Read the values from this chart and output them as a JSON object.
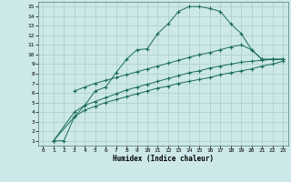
{
  "xlabel": "Humidex (Indice chaleur)",
  "bg_color": "#cce8e8",
  "line_color": "#1a6b5a",
  "grid_color": "#aacccc",
  "c1_x": [
    1,
    2,
    3,
    4,
    5,
    6,
    7,
    8,
    9,
    10,
    11,
    12,
    13,
    14,
    15,
    16,
    17,
    18,
    19,
    20,
    21,
    22,
    23
  ],
  "c1_y": [
    1.0,
    1.0,
    3.5,
    4.7,
    6.2,
    6.6,
    8.1,
    9.5,
    10.5,
    10.6,
    12.2,
    13.2,
    14.5,
    15.0,
    15.0,
    14.8,
    14.5,
    13.2,
    12.2,
    10.5,
    9.5,
    9.5,
    9.5
  ],
  "c2_x": [
    3,
    4,
    5,
    6,
    7,
    8,
    9,
    10,
    11,
    12,
    13,
    14,
    15,
    16,
    17,
    18,
    19,
    20,
    21,
    22,
    23
  ],
  "c2_y": [
    6.2,
    6.6,
    7.0,
    7.3,
    7.6,
    7.9,
    8.2,
    8.5,
    8.8,
    9.1,
    9.4,
    9.7,
    10.0,
    10.2,
    10.5,
    10.8,
    11.0,
    10.5,
    9.5,
    9.5,
    9.5
  ],
  "c3_x": [
    1,
    3,
    4,
    5,
    6,
    7,
    8,
    9,
    10,
    11,
    12,
    13,
    14,
    15,
    16,
    17,
    18,
    19,
    20,
    21,
    22,
    23
  ],
  "c3_y": [
    1.0,
    4.0,
    4.7,
    5.1,
    5.5,
    5.9,
    6.3,
    6.6,
    6.9,
    7.2,
    7.5,
    7.8,
    8.1,
    8.3,
    8.6,
    8.8,
    9.0,
    9.2,
    9.3,
    9.4,
    9.5,
    9.5
  ],
  "c4_x": [
    1,
    3,
    4,
    5,
    6,
    7,
    8,
    9,
    10,
    11,
    12,
    13,
    14,
    15,
    16,
    17,
    18,
    19,
    20,
    21,
    22,
    23
  ],
  "c4_y": [
    1.0,
    3.5,
    4.2,
    4.6,
    5.0,
    5.3,
    5.6,
    5.9,
    6.2,
    6.5,
    6.7,
    7.0,
    7.2,
    7.4,
    7.6,
    7.9,
    8.1,
    8.3,
    8.5,
    8.8,
    9.0,
    9.3
  ],
  "xticks": [
    0,
    1,
    2,
    3,
    4,
    5,
    6,
    7,
    8,
    9,
    10,
    11,
    12,
    13,
    14,
    15,
    16,
    17,
    18,
    19,
    20,
    21,
    22,
    23
  ],
  "yticks": [
    1,
    2,
    3,
    4,
    5,
    6,
    7,
    8,
    9,
    10,
    11,
    12,
    13,
    14,
    15
  ]
}
